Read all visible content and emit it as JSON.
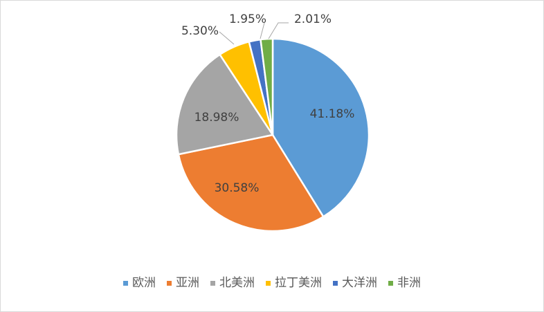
{
  "chart_data": {
    "type": "pie",
    "title": "",
    "categories": [
      "欧洲",
      "亚洲",
      "北美洲",
      "拉丁美洲",
      "大洋洲",
      "非洲"
    ],
    "values": [
      41.18,
      30.58,
      18.98,
      5.3,
      1.95,
      2.01
    ],
    "labels": [
      "41.18%",
      "30.58%",
      "18.98%",
      "5.30%",
      "1.95%",
      "2.01%"
    ],
    "colors": [
      "#5B9BD5",
      "#ED7D31",
      "#A5A5A5",
      "#FFC000",
      "#4472C4",
      "#70AD47"
    ],
    "legend": "bottom",
    "start_angle": "12 o'clock",
    "direction": "clockwise"
  }
}
